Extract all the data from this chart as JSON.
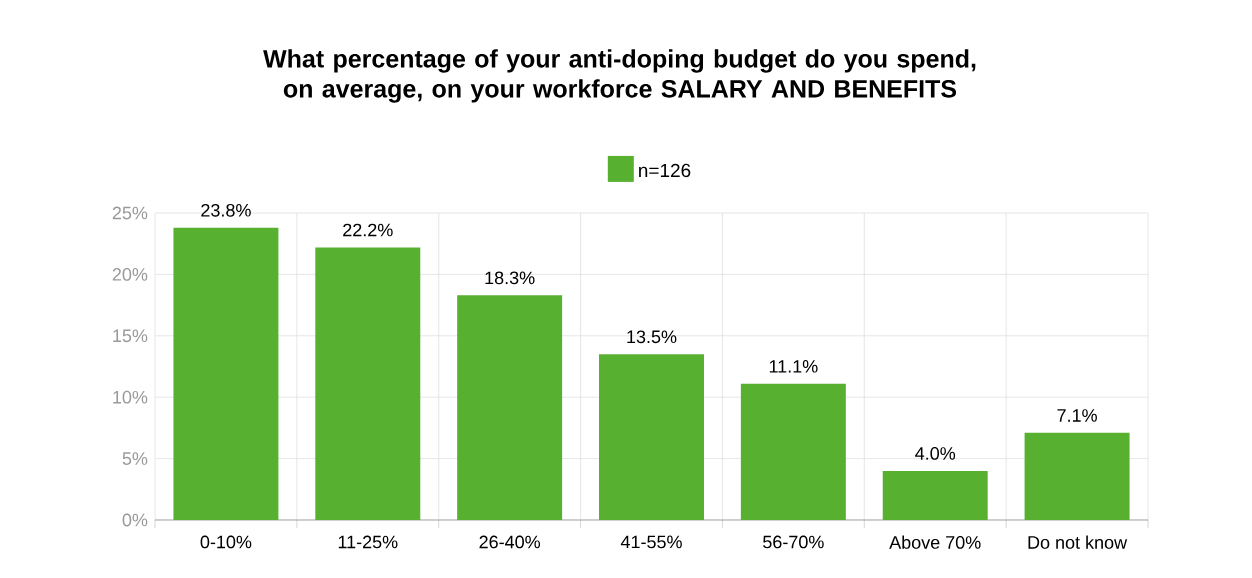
{
  "chart_data": {
    "type": "bar",
    "title": "What percentage of your anti-doping budget do you spend, on average, on your workforce SALARY AND BENEFITS",
    "categories": [
      "0-10%",
      "11-25%",
      "26-40%",
      "41-55%",
      "56-70%",
      "Above 70%",
      "Do not know"
    ],
    "series": [
      {
        "name": "n=126",
        "color": "#58b031",
        "values": [
          23.8,
          22.2,
          18.3,
          13.5,
          11.1,
          4.0,
          7.1
        ],
        "value_labels": [
          "23.8%",
          "22.2%",
          "18.3%",
          "13.5%",
          "11.1%",
          "4.0%",
          "7.1%"
        ]
      }
    ],
    "ylim": [
      0,
      25
    ],
    "yticks": [
      {
        "value": 0,
        "label": "0%"
      },
      {
        "value": 5,
        "label": "5%"
      },
      {
        "value": 10,
        "label": "10%"
      },
      {
        "value": 15,
        "label": "15%"
      },
      {
        "value": 20,
        "label": "20%"
      },
      {
        "value": 25,
        "label": "25%"
      }
    ],
    "grid": true,
    "legend": "top"
  }
}
